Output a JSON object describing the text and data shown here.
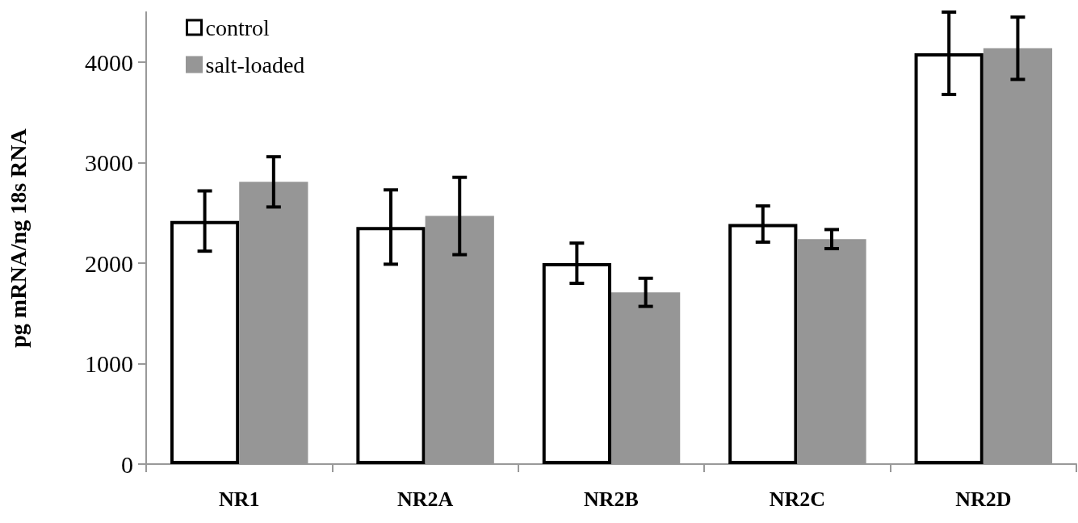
{
  "chart_data": {
    "type": "bar",
    "ylabel": "pg mRNA/ng 18s RNA",
    "categories": [
      "NR1",
      "NR2A",
      "NR2B",
      "NR2C",
      "NR2D"
    ],
    "series": [
      {
        "name": "control",
        "color": "#ffffff",
        "values": [
          2420,
          2360,
          2000,
          2390,
          4090
        ],
        "errors": [
          300,
          370,
          200,
          180,
          410
        ]
      },
      {
        "name": "salt-loaded",
        "color": "#969696",
        "values": [
          2810,
          2470,
          1710,
          2240,
          4140
        ],
        "errors": [
          250,
          385,
          140,
          95,
          310
        ]
      }
    ],
    "ylim": [
      0,
      4500
    ],
    "yticks": [
      0,
      1000,
      2000,
      3000,
      4000
    ],
    "grid": false,
    "legend": "top left"
  }
}
